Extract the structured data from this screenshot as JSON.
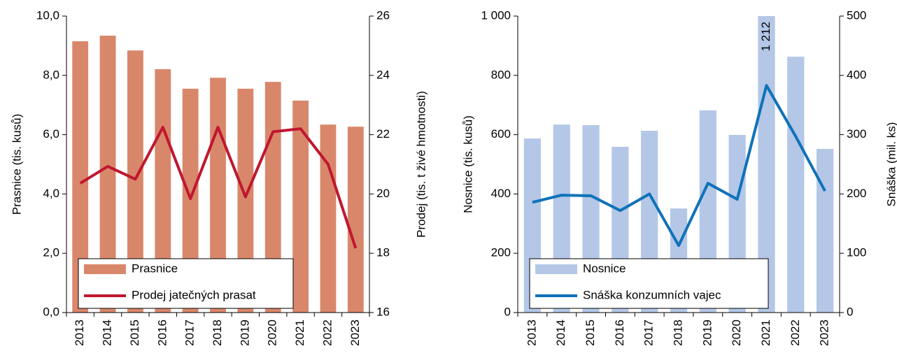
{
  "chart_data": [
    {
      "type": "bar-line",
      "categories": [
        "2013",
        "2014",
        "2015",
        "2016",
        "2017",
        "2018",
        "2019",
        "2020",
        "2021",
        "2022",
        "2023"
      ],
      "ylabel": "Prasnice (tis. kusů)",
      "y2label": "Prodej (tis. t živé hmotnosti)",
      "ylim": [
        0,
        10
      ],
      "yticks": [
        {
          "value": 0,
          "label": "0,0"
        },
        {
          "value": 2,
          "label": "2,0"
        },
        {
          "value": 4,
          "label": "4,0"
        },
        {
          "value": 6,
          "label": "6,0"
        },
        {
          "value": 8,
          "label": "8,0"
        },
        {
          "value": 10,
          "label": "10,0"
        }
      ],
      "y2lim": [
        16,
        26
      ],
      "y2ticks": [
        16,
        18,
        20,
        22,
        24,
        26
      ],
      "series": [
        {
          "name": "Prasnice",
          "color": "#d9876b",
          "values": [
            9.15,
            9.34,
            8.84,
            8.21,
            7.55,
            7.92,
            7.55,
            7.78,
            7.15,
            6.34,
            6.27
          ]
        },
        {
          "name": "Prodej jatečných prasat",
          "color": "#c0172f",
          "axis": "y2",
          "values": [
            20.36,
            20.93,
            20.5,
            22.25,
            19.84,
            22.25,
            19.9,
            22.1,
            22.2,
            21.0,
            18.17
          ]
        }
      ]
    },
    {
      "type": "bar-line",
      "categories": [
        "2013",
        "2014",
        "2015",
        "2016",
        "2017",
        "2018",
        "2019",
        "2020",
        "2021",
        "2022",
        "2023"
      ],
      "ylabel": "Nosnice (tis. kusů)",
      "y2label": "Snáška (mil. ks)",
      "ylim": [
        0,
        1000
      ],
      "yticks": [
        0,
        200,
        400,
        600,
        800,
        {
          "value": 1000,
          "label": "1 000"
        }
      ],
      "y2lim": [
        0,
        500
      ],
      "y2ticks": [
        0,
        100,
        200,
        300,
        400,
        500
      ],
      "series": [
        {
          "name": "Nosnice",
          "color": "#b4c7e7",
          "values": [
            587,
            634,
            632,
            559,
            613,
            351,
            682,
            599,
            1212,
            863,
            552
          ],
          "value_labels": [
            null,
            null,
            null,
            null,
            null,
            null,
            null,
            null,
            "1 212",
            null,
            null
          ]
        },
        {
          "name": "Snáška konzumních vajec",
          "color": "#0f72b9",
          "axis": "y2",
          "values": [
            186,
            198,
            197,
            172,
            200,
            113,
            218,
            191,
            383,
            297,
            205
          ]
        }
      ]
    }
  ]
}
